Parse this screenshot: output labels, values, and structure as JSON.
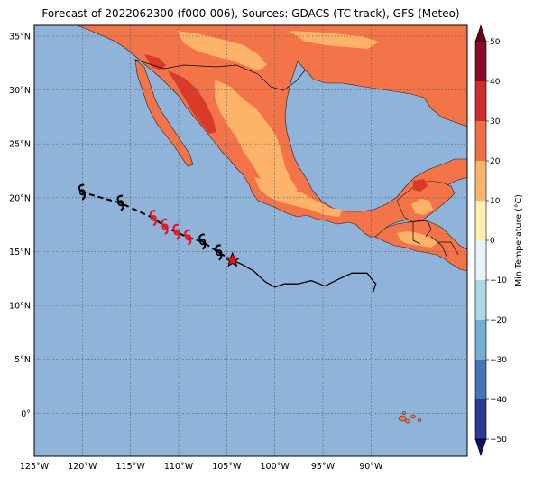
{
  "title": "Forecast of 2022062300 (f000-006), Sources: GDACS (TC track), GFS (Meteo)",
  "map": {
    "lon_range": [
      -125,
      -80
    ],
    "lat_range": [
      -4,
      36
    ],
    "lat_ticks": [
      {
        "value": 35,
        "label": "35°N"
      },
      {
        "value": 30,
        "label": "30°N"
      },
      {
        "value": 25,
        "label": "25°N"
      },
      {
        "value": 20,
        "label": "20°N"
      },
      {
        "value": 15,
        "label": "15°N"
      },
      {
        "value": 10,
        "label": "10°N"
      },
      {
        "value": 5,
        "label": "5°N"
      },
      {
        "value": 0,
        "label": "0°"
      }
    ],
    "lon_ticks": [
      {
        "value": -125,
        "label": "125°W"
      },
      {
        "value": -120,
        "label": "120°W"
      },
      {
        "value": -115,
        "label": "115°W"
      },
      {
        "value": -110,
        "label": "110°W"
      },
      {
        "value": -105,
        "label": "105°W"
      },
      {
        "value": -100,
        "label": "100°W"
      },
      {
        "value": -95,
        "label": "95°W"
      },
      {
        "value": -90,
        "label": "90°W"
      }
    ],
    "colors": {
      "ocean": "#8fb3d9",
      "land_hot": "#f4744a",
      "land_warm": "#fdb36a",
      "land_very_hot": "#d93a2a",
      "grid": "#555555"
    }
  },
  "colorbar": {
    "label": "Min Temperature (°C)",
    "ticks": [
      "50",
      "40",
      "30",
      "20",
      "10",
      "0",
      "−10",
      "−20",
      "−30",
      "−40",
      "−50"
    ],
    "colors": [
      "#8b0a26",
      "#cf2a2e",
      "#f26d44",
      "#fdb46b",
      "#fff0b0",
      "#e6f5f8",
      "#add8e7",
      "#74aed2",
      "#4476b5",
      "#2c3897"
    ]
  },
  "track": {
    "history": [
      {
        "lon": -89.8,
        "lat": 11.2
      },
      {
        "lon": -89.5,
        "lat": 12.0
      },
      {
        "lon": -89.9,
        "lat": 12.4
      },
      {
        "lon": -90.4,
        "lat": 13.0
      },
      {
        "lon": -92.0,
        "lat": 13.0
      },
      {
        "lon": -93.2,
        "lat": 12.5
      },
      {
        "lon": -94.8,
        "lat": 11.8
      },
      {
        "lon": -96.2,
        "lat": 12.3
      },
      {
        "lon": -97.6,
        "lat": 12.0
      },
      {
        "lon": -99.0,
        "lat": 12.0
      },
      {
        "lon": -100.0,
        "lat": 11.7
      },
      {
        "lon": -101.0,
        "lat": 12.2
      },
      {
        "lon": -102.2,
        "lat": 13.2
      },
      {
        "lon": -103.4,
        "lat": 13.8
      },
      {
        "lon": -104.4,
        "lat": 14.2
      }
    ],
    "current": {
      "lon": -104.4,
      "lat": 14.2
    },
    "forecast": [
      {
        "lon": -105.8,
        "lat": 14.9,
        "color": "#000000"
      },
      {
        "lon": -107.5,
        "lat": 15.9,
        "color": "#000000"
      },
      {
        "lon": -109.0,
        "lat": 16.3,
        "color": "#e8141c"
      },
      {
        "lon": -110.2,
        "lat": 16.8,
        "color": "#e8141c"
      },
      {
        "lon": -111.4,
        "lat": 17.3,
        "color": "#e8141c"
      },
      {
        "lon": -112.6,
        "lat": 18.1,
        "color": "#e8141c"
      },
      {
        "lon": -116.0,
        "lat": 19.5,
        "color": "#000000"
      },
      {
        "lon": -120.0,
        "lat": 20.5,
        "color": "#000000"
      }
    ]
  }
}
